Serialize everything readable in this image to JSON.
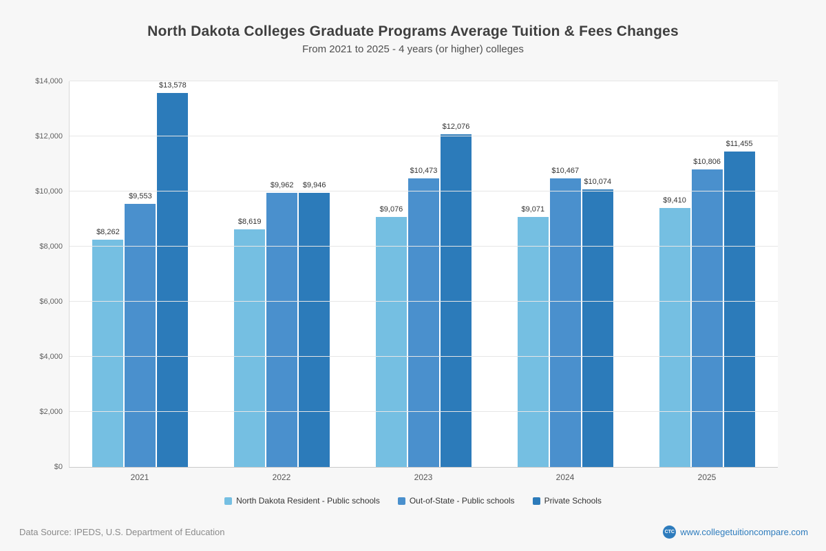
{
  "page": {
    "title": "North Dakota Colleges Graduate Programs Average Tuition & Fees Changes",
    "subtitle": "From 2021 to 2025 - 4 years (or higher) colleges",
    "source": "Data Source: IPEDS, U.S. Department of Education",
    "website": "www.collegetuitioncompare.com",
    "logo_text": "CTC"
  },
  "chart_data": {
    "type": "bar",
    "title": "North Dakota Colleges Graduate Programs Average Tuition & Fees Changes",
    "subtitle": "From 2021 to 2025 - 4 years (or higher) colleges",
    "categories": [
      "2021",
      "2022",
      "2023",
      "2024",
      "2025"
    ],
    "series": [
      {
        "name": "North Dakota Resident - Public schools",
        "color": "#75bfe2",
        "values": [
          8262,
          8619,
          9076,
          9071,
          9410
        ]
      },
      {
        "name": "Out-of-State - Public schools",
        "color": "#4a90cd",
        "values": [
          9553,
          9962,
          10473,
          10467,
          10806
        ]
      },
      {
        "name": "Private Schools",
        "color": "#2c7bba",
        "values": [
          13578,
          9946,
          12076,
          10074,
          11455
        ]
      }
    ],
    "xlabel": "",
    "ylabel": "",
    "ylim": [
      0,
      14000
    ],
    "ytick_step": 2000,
    "grid": true,
    "legend_position": "bottom",
    "value_prefix": "$"
  }
}
